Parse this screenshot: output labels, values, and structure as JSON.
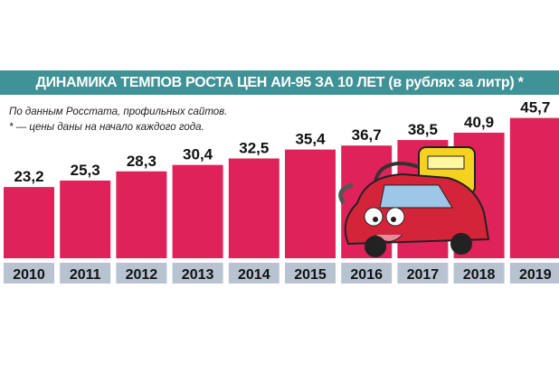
{
  "chart_data": {
    "type": "bar",
    "title": "ДИНАМИКА ТЕМПОВ РОСТА ЦЕН АИ-95 ЗА 10 ЛЕТ (в рублях за литр) *",
    "notes": [
      "По данным Росстата, профильных сайтов.",
      "* — цены даны на начало каждого года."
    ],
    "categories": [
      "2010",
      "2011",
      "2012",
      "2013",
      "2014",
      "2015",
      "2016",
      "2017",
      "2018",
      "2019"
    ],
    "values": [
      23.2,
      25.3,
      28.3,
      30.4,
      32.5,
      35.4,
      36.7,
      38.5,
      40.9,
      45.7
    ],
    "value_labels": [
      "23,2",
      "25,3",
      "28,3",
      "30,4",
      "32,5",
      "35,4",
      "36,7",
      "38,5",
      "40,9",
      "45,7"
    ],
    "xlabel": "",
    "ylabel": "",
    "ylim": [
      0,
      50
    ],
    "colors": {
      "bar": "#e0225a",
      "banner": "#3f9296",
      "year_bg": "#b8c3d1"
    }
  }
}
